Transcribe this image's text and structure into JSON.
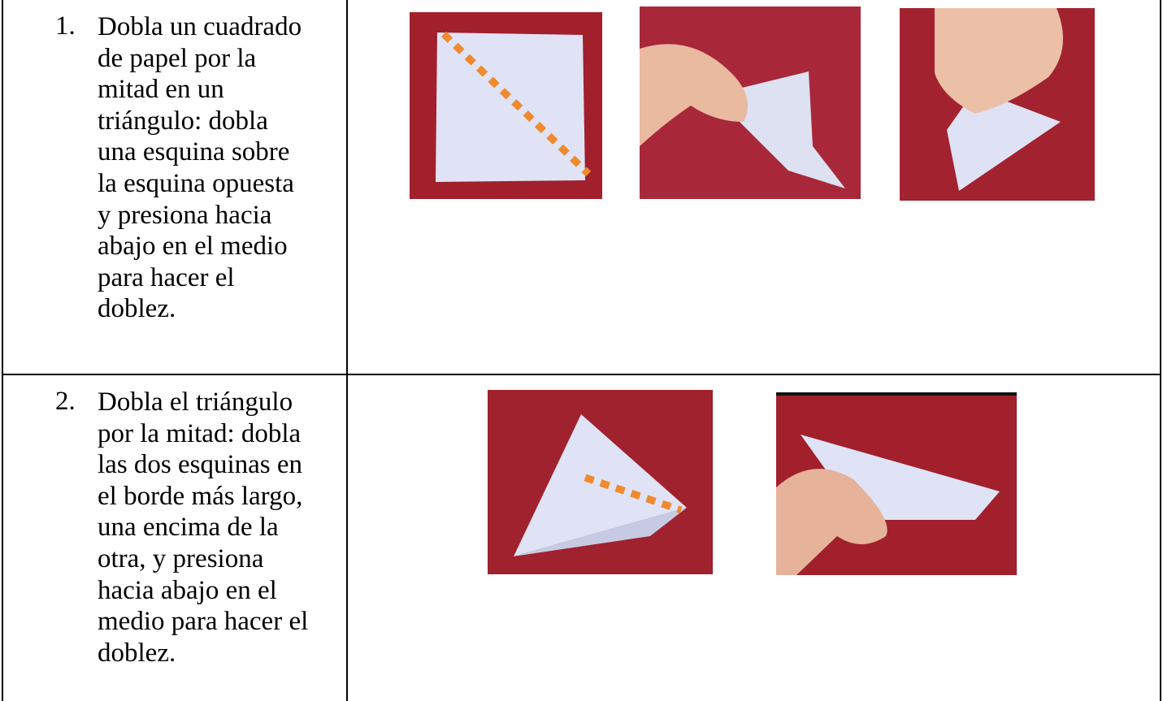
{
  "steps": [
    {
      "number": "1.",
      "lines": [
        "Dobla un cuadrado",
        "de papel por la",
        "mitad en un",
        "triángulo: dobla",
        "una esquina sobre",
        "la esquina opuesta",
        "y presiona hacia",
        "abajo en el medio",
        "para hacer el",
        "doblez."
      ]
    },
    {
      "number": "2.",
      "lines": [
        "Dobla el triángulo",
        "por la mitad: dobla",
        "las dos esquinas en",
        "el borde más largo,",
        "una encima de la",
        "otra, y presiona",
        "hacia abajo en el",
        "medio para hacer el",
        "doblez."
      ]
    }
  ]
}
